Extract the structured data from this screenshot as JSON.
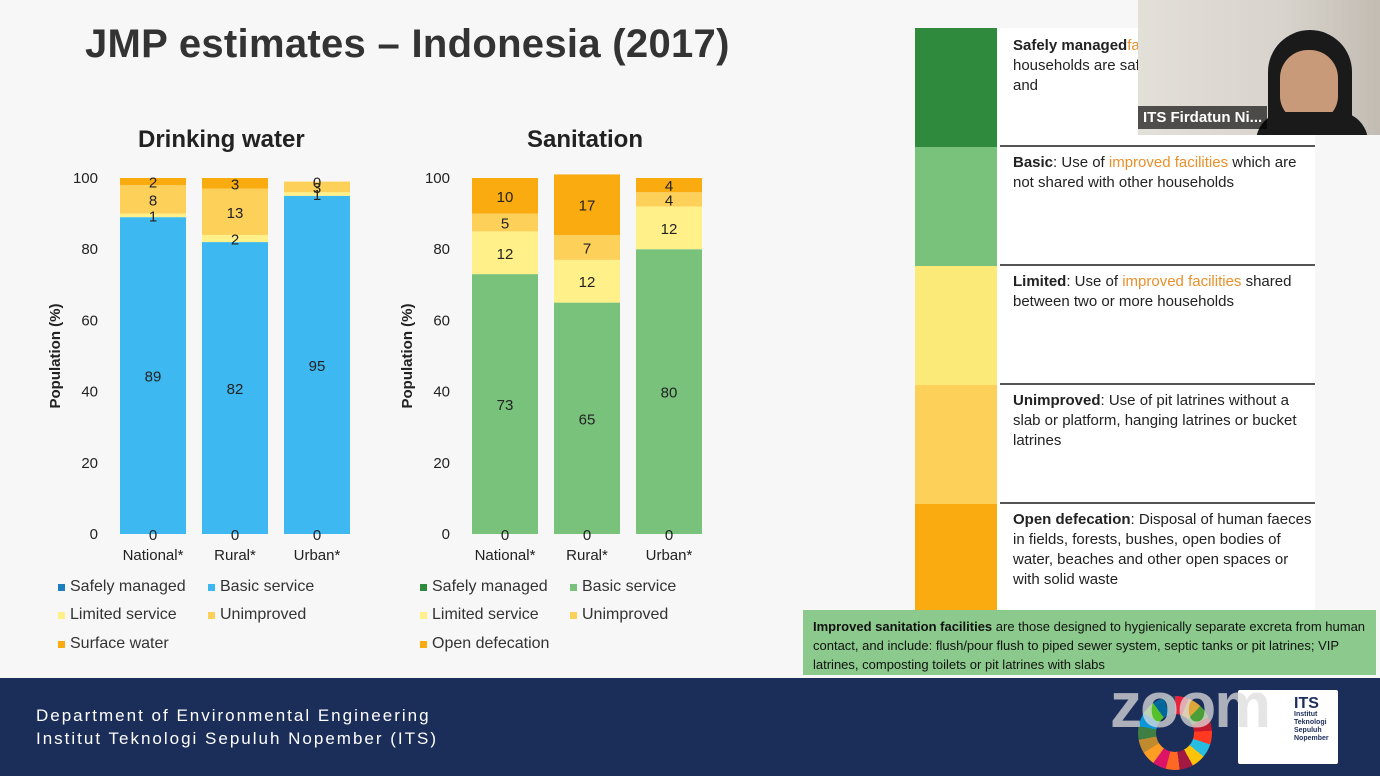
{
  "slide": {
    "title": "JMP estimates – Indonesia (2017)"
  },
  "chart_data": [
    {
      "type": "bar",
      "stacked": true,
      "title": "Drinking water",
      "title_color": "#1aa7ec",
      "ylabel": "Population (%)",
      "ylim": [
        0,
        100
      ],
      "yticks": [
        0,
        20,
        40,
        60,
        80,
        100
      ],
      "categories": [
        "National*",
        "Rural*",
        "Urban*"
      ],
      "series": [
        {
          "name": "Safely managed",
          "color": "#1d7dc1",
          "values": [
            0,
            0,
            0
          ]
        },
        {
          "name": "Basic service",
          "color": "#3db8f0",
          "values": [
            89,
            82,
            95
          ]
        },
        {
          "name": "Limited service",
          "color": "#fff08a",
          "values": [
            1,
            2,
            1
          ]
        },
        {
          "name": "Unimproved",
          "color": "#fdd05a",
          "values": [
            8,
            13,
            3
          ]
        },
        {
          "name": "Surface water",
          "color": "#f9ab10",
          "values": [
            2,
            3,
            0
          ]
        }
      ],
      "legend": [
        "Safely managed",
        "Basic service",
        "Limited service",
        "Unimproved",
        "Surface water"
      ]
    },
    {
      "type": "bar",
      "stacked": true,
      "title": "Sanitation",
      "title_color": "#1ea35a",
      "ylabel": "Population (%)",
      "ylim": [
        0,
        100
      ],
      "yticks": [
        0,
        20,
        40,
        60,
        80,
        100
      ],
      "categories": [
        "National*",
        "Rural*",
        "Urban*"
      ],
      "series": [
        {
          "name": "Safely managed",
          "color": "#2f8a3e",
          "values": [
            0,
            0,
            0
          ]
        },
        {
          "name": "Basic service",
          "color": "#79c27c",
          "values": [
            73,
            65,
            80
          ]
        },
        {
          "name": "Limited service",
          "color": "#fff08a",
          "values": [
            12,
            12,
            12
          ]
        },
        {
          "name": "Unimproved",
          "color": "#fdd05a",
          "values": [
            5,
            7,
            4
          ]
        },
        {
          "name": "Open defecation",
          "color": "#f9ab10",
          "values": [
            10,
            17,
            4
          ]
        }
      ],
      "legend": [
        "Safely managed",
        "Basic service",
        "Limited service",
        "Unimproved",
        "Open defecation"
      ]
    }
  ],
  "definitions": [
    {
      "title": "Safely managed",
      "color": "#2f8a3e",
      "pre": "",
      "highlight": "facilities",
      "post": " which a other households are safely dispos transported and"
    },
    {
      "title": "Basic",
      "color": "#79c27c",
      "pre": ": Use of ",
      "highlight": "improved facilities",
      "post": " which are not shared with other households"
    },
    {
      "title": "Limited",
      "color": "#fbe978",
      "pre": ": Use of ",
      "highlight": "improved facilities",
      "post": " shared between two or more households"
    },
    {
      "title": "Unimproved",
      "color": "#fdd05a",
      "pre": ": Use of pit latrines without a slab or platform, hanging latrines or bucket latrines",
      "highlight": "",
      "post": ""
    },
    {
      "title": "Open defecation",
      "color": "#f9ab10",
      "pre": ": Disposal of human faeces in fields, forests, bushes, open bodies of water, beaches and other open spaces or with solid waste",
      "highlight": "",
      "post": ""
    }
  ],
  "improved_note": {
    "bold": "Improved sanitation facilities",
    "text": " are those designed to hygienically separate excreta from human contact, and include: flush/pour flush to piped sewer system, septic tanks or pit latrines; VIP latrines, composting toilets or pit latrines with slabs"
  },
  "footer": {
    "line1": "Department of Environmental Engineering",
    "line2": "Institut Teknologi Sepuluh Nopember (ITS)",
    "watermark": "zoom",
    "logo_text": "ITS",
    "logo_sub": "Institut Teknologi Sepuluh Nopember"
  },
  "webcam": {
    "participant_name": "ITS Firdatun Ni..."
  }
}
